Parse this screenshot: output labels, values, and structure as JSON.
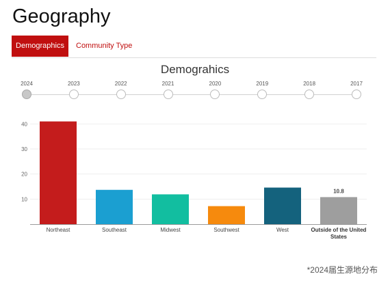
{
  "page": {
    "title": "Geography"
  },
  "tabs": [
    {
      "label": "Demographics",
      "active": true
    },
    {
      "label": "Community Type",
      "active": false
    }
  ],
  "timeline": {
    "years": [
      "2024",
      "2023",
      "2022",
      "2021",
      "2020",
      "2019",
      "2018",
      "2017"
    ],
    "selected": "2024"
  },
  "colors": {
    "accent": "#c00f0f"
  },
  "chart_data": {
    "type": "bar",
    "title": "Demograhics",
    "categories": [
      "Northeast",
      "Southeast",
      "Midwest",
      "Southwest",
      "West",
      "Outside of the United States"
    ],
    "values": [
      41,
      13.7,
      11.9,
      7.2,
      14.6,
      10.8
    ],
    "colors": [
      "#c41c1c",
      "#1b9fd1",
      "#12bea0",
      "#f68a0d",
      "#14627d",
      "#9e9e9e"
    ],
    "data_labels": [
      "",
      "",
      "",
      "",
      "",
      "10.8"
    ],
    "yticks": [
      10,
      20,
      30,
      40
    ],
    "ylim": [
      0,
      45
    ],
    "grid": true,
    "xlabel": "",
    "ylabel": ""
  },
  "footnote": "*2024届生源地分布"
}
